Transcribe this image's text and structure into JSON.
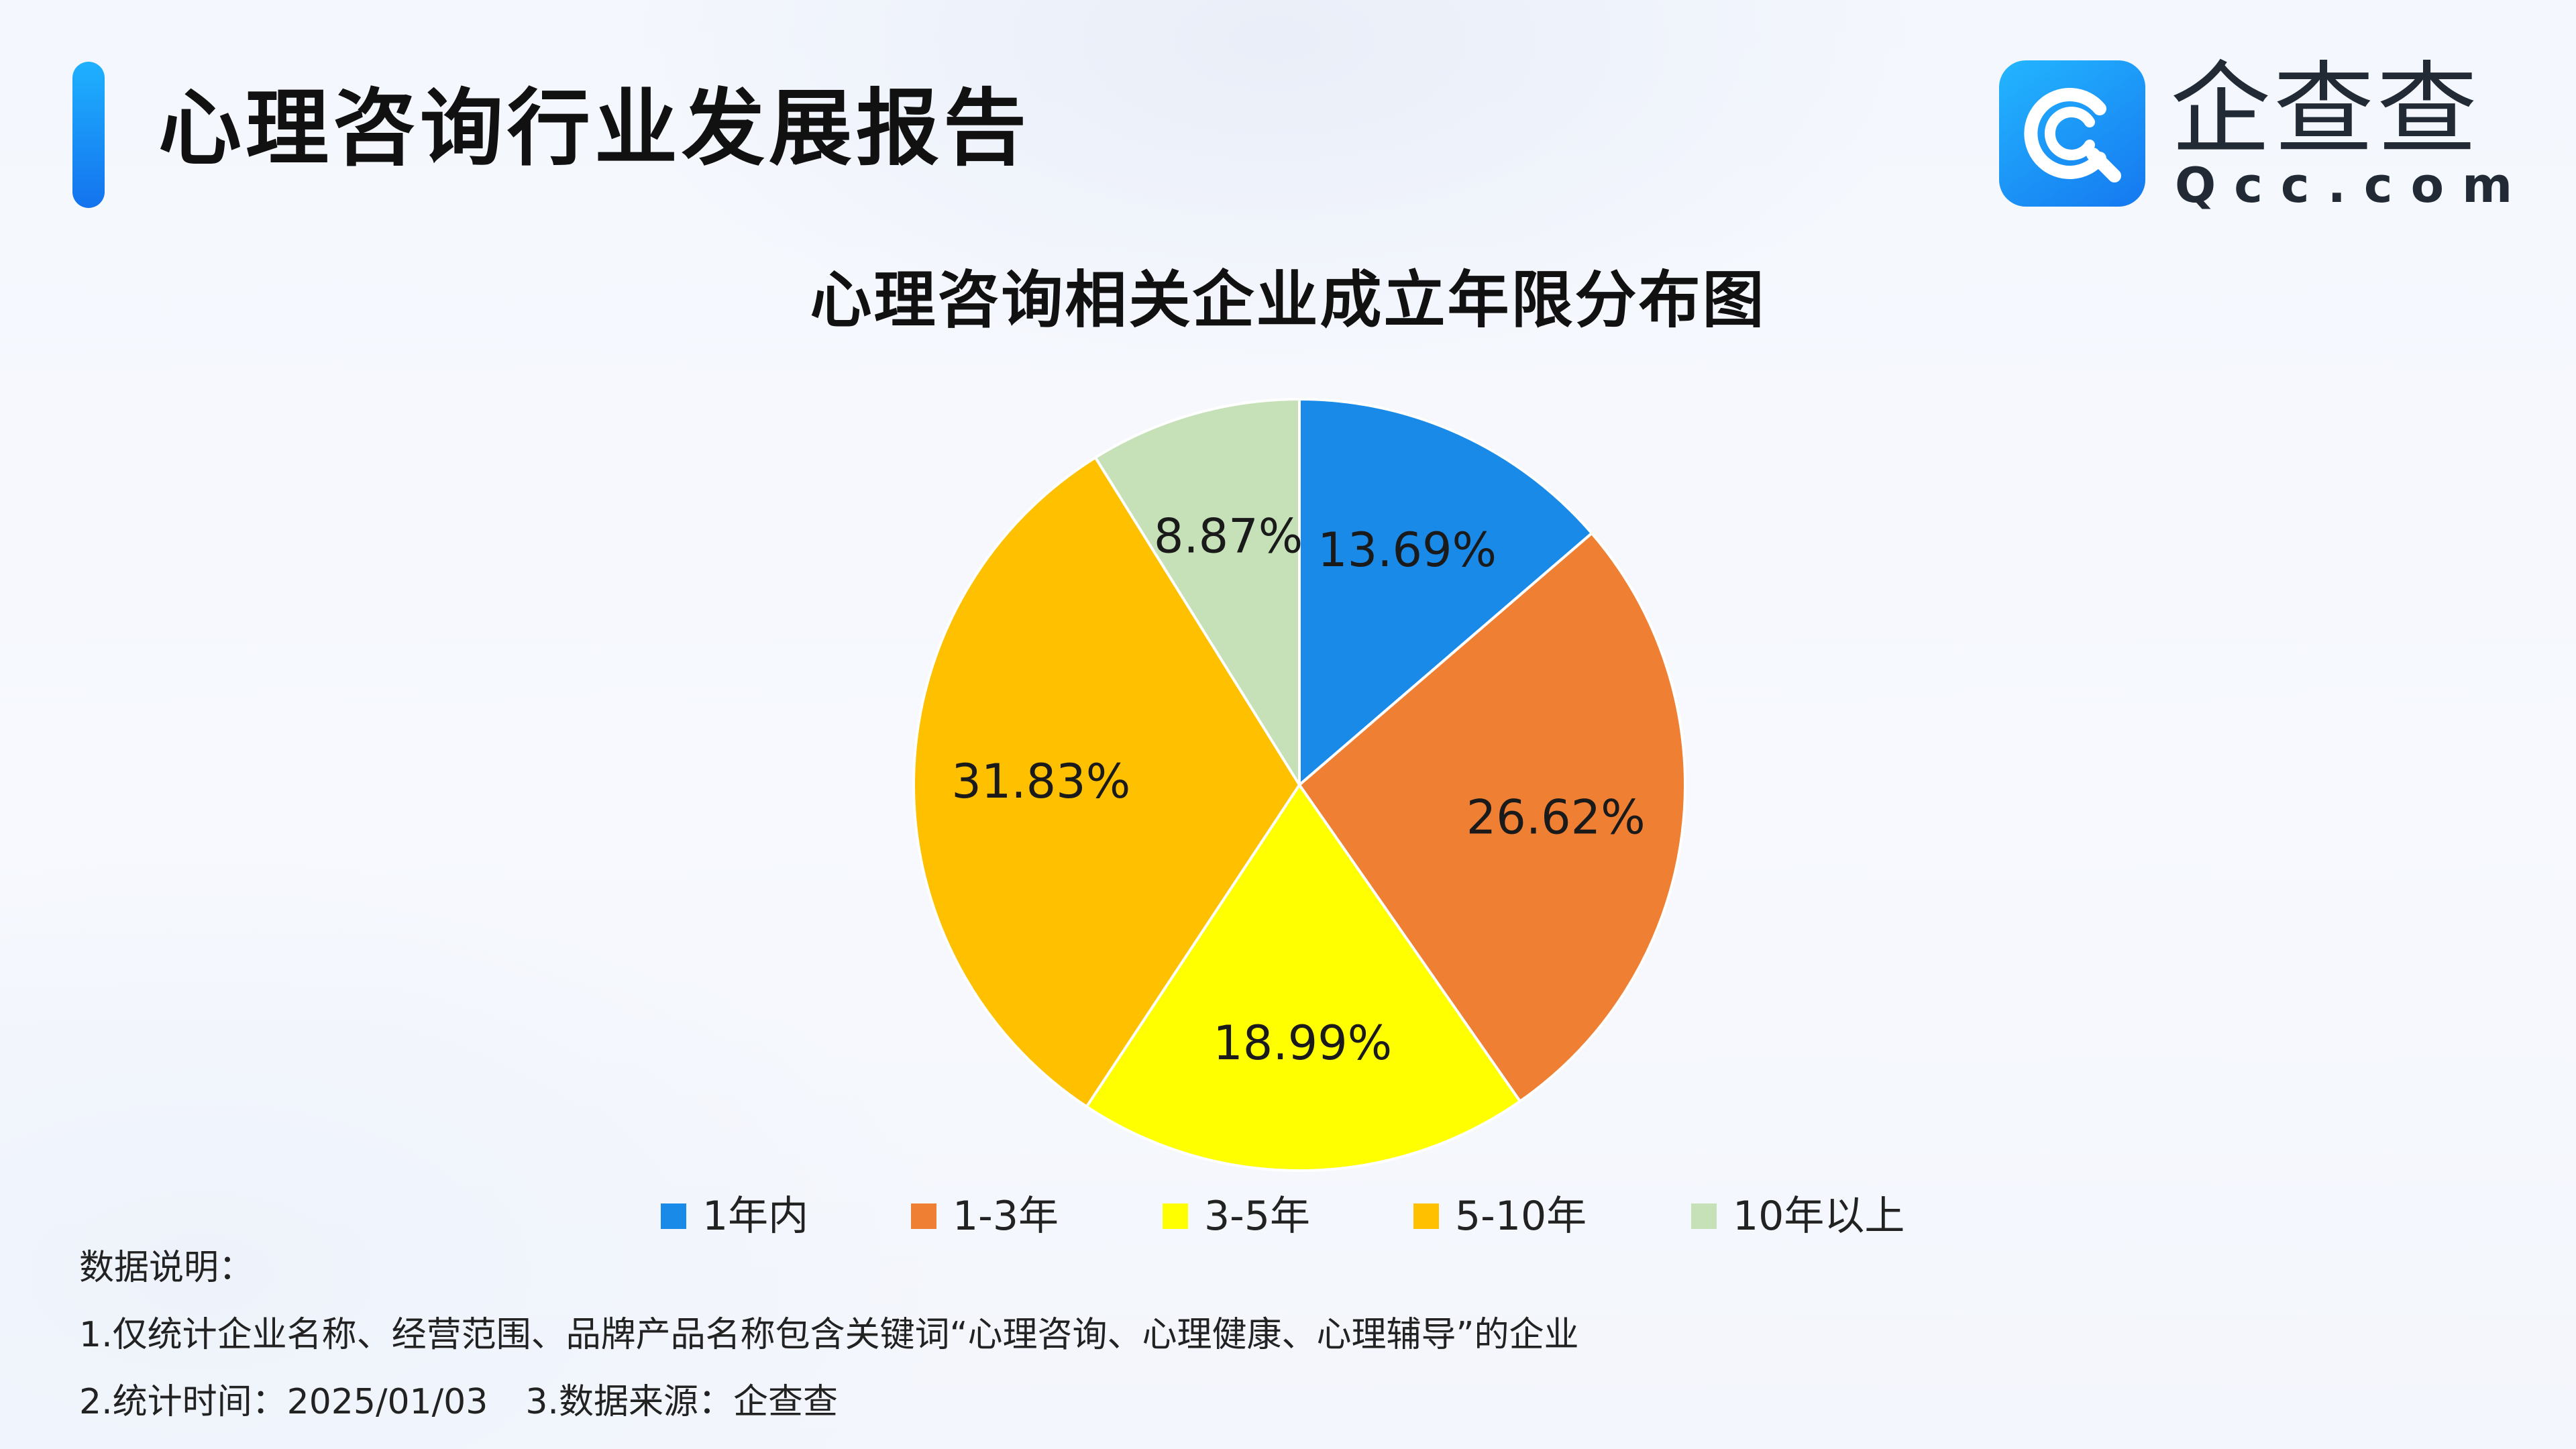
{
  "header": {
    "report_title": "心理咨询行业发展报告"
  },
  "logo": {
    "name": "企查查",
    "url": "Qcc.com",
    "badge_icon": "qcc-logo-icon",
    "brand_color": "#1a8cf6"
  },
  "chart_data": {
    "type": "pie",
    "title": "心理咨询相关企业成立年限分布图",
    "categories": [
      "1年内",
      "1-3年",
      "3-5年",
      "5-10年",
      "10年以上"
    ],
    "values": [
      13.69,
      26.62,
      18.99,
      31.83,
      8.87
    ],
    "value_labels": [
      "13.69%",
      "26.62%",
      "18.99%",
      "31.83%",
      "8.87%"
    ],
    "colors": [
      "#1a8ae8",
      "#ee7f33",
      "#ffff00",
      "#ffc000",
      "#c6e0b8"
    ],
    "start_angle": "12 o'clock",
    "direction": "clockwise",
    "legend_position": "bottom"
  },
  "notes": {
    "heading": "数据说明：",
    "line1": "1.仅统计企业名称、经营范围、品牌产品名称包含关键词“心理咨询、心理健康、心理辅导”的企业",
    "stat_time": "2.统计时间：2025/01/03",
    "source": "3.数据来源：企查查"
  }
}
